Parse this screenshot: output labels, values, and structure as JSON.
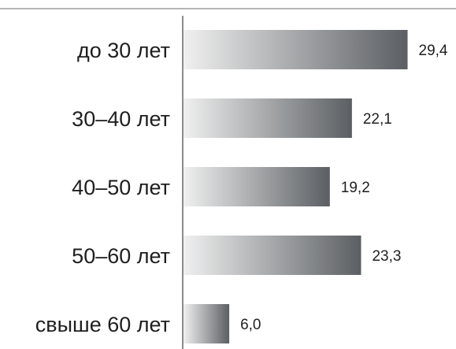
{
  "chart_data": {
    "type": "bar",
    "orientation": "horizontal",
    "categories": [
      "до 30 лет",
      "30–40 лет",
      "40–50 лет",
      "50–60 лет",
      "свыше 60 лет"
    ],
    "values": [
      29.4,
      22.1,
      19.2,
      23.3,
      6.0
    ],
    "value_labels": [
      "29,4",
      "22,1",
      "19,2",
      "23,3",
      "6,0"
    ],
    "title": "",
    "xlabel": "",
    "ylabel": "",
    "xlim": [
      0,
      31
    ],
    "grid": false,
    "legend": "none",
    "colors": {
      "bar_gradient_start": "#f0f0f0",
      "bar_gradient_end": "#5b5f63",
      "axis": "#8c8c8c",
      "top_rule": "#b5b5b5",
      "text": "#1f1f1f"
    }
  }
}
